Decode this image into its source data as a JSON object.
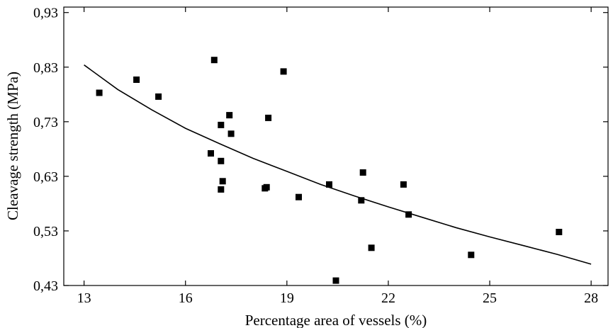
{
  "chart_data": {
    "type": "scatter",
    "title": "",
    "xlabel": "Percentage area of vessels (%)",
    "ylabel": "Cleavage strength (MPa)",
    "xlim": [
      12.4,
      28.5
    ],
    "ylim": [
      0.43,
      0.94
    ],
    "x_ticks": [
      13,
      16,
      19,
      22,
      25,
      28
    ],
    "x_tick_labels": [
      "13",
      "16",
      "19",
      "22",
      "25",
      "28"
    ],
    "y_ticks": [
      0.43,
      0.53,
      0.63,
      0.73,
      0.83,
      0.93
    ],
    "y_tick_labels": [
      "0,43",
      "0,53",
      "0,63",
      "0,73",
      "0,83",
      "0,93"
    ],
    "grid": false,
    "series": [
      {
        "type": "scatter",
        "x": [
          13.45,
          14.55,
          15.2,
          16.75,
          16.85,
          17.05,
          17.05,
          17.1,
          17.05,
          17.3,
          17.35,
          18.35,
          18.4,
          18.45,
          18.9,
          19.35,
          20.25,
          20.45,
          21.2,
          21.25,
          21.5,
          22.45,
          22.6,
          24.45,
          27.05
        ],
        "y": [
          0.783,
          0.807,
          0.776,
          0.672,
          0.843,
          0.724,
          0.658,
          0.621,
          0.606,
          0.742,
          0.708,
          0.608,
          0.61,
          0.737,
          0.822,
          0.592,
          0.615,
          0.439,
          0.586,
          0.637,
          0.499,
          0.615,
          0.56,
          0.486,
          0.528
        ]
      },
      {
        "type": "line",
        "x": [
          13,
          14,
          15,
          16,
          17,
          18,
          19,
          20,
          21,
          22,
          23,
          24,
          25,
          26,
          27,
          28
        ],
        "y": [
          0.834,
          0.789,
          0.752,
          0.718,
          0.69,
          0.663,
          0.639,
          0.615,
          0.594,
          0.574,
          0.555,
          0.536,
          0.519,
          0.503,
          0.487,
          0.469
        ]
      }
    ]
  }
}
